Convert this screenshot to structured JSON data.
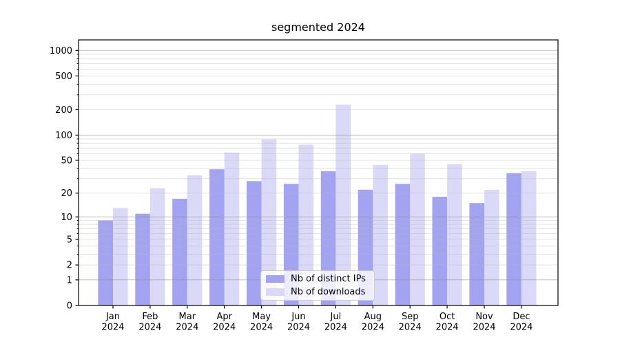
{
  "chart_data": {
    "type": "bar",
    "title": "segmented 2024",
    "categories": [
      "Jan",
      "Feb",
      "Mar",
      "Apr",
      "May",
      "Jun",
      "Jul",
      "Aug",
      "Sep",
      "Oct",
      "Nov",
      "Dec"
    ],
    "x_tick_second_line": "2024",
    "series": [
      {
        "name": "Nb of distinct IPs",
        "color": "#a3a3f2",
        "values": [
          9,
          11,
          17,
          39,
          28,
          26,
          37,
          22,
          26,
          18,
          15,
          35
        ]
      },
      {
        "name": "Nb of downloads",
        "color": "#dadaf8",
        "values": [
          13,
          23,
          33,
          62,
          89,
          77,
          230,
          44,
          60,
          45,
          22,
          37
        ]
      }
    ],
    "xlabel": "",
    "ylabel": "",
    "yscale": "log1p",
    "yticks": [
      0,
      1,
      2,
      5,
      10,
      20,
      50,
      100,
      200,
      500,
      1000
    ],
    "ylim": [
      0,
      1350
    ],
    "grid": true,
    "legend_position": "lower center",
    "colors": {
      "major_gridline": "rgba(140,140,140,0.55)",
      "minor_gridline": "rgba(180,180,180,0.38)",
      "axis": "#000000",
      "text": "#000000",
      "background": "#ffffff"
    }
  }
}
